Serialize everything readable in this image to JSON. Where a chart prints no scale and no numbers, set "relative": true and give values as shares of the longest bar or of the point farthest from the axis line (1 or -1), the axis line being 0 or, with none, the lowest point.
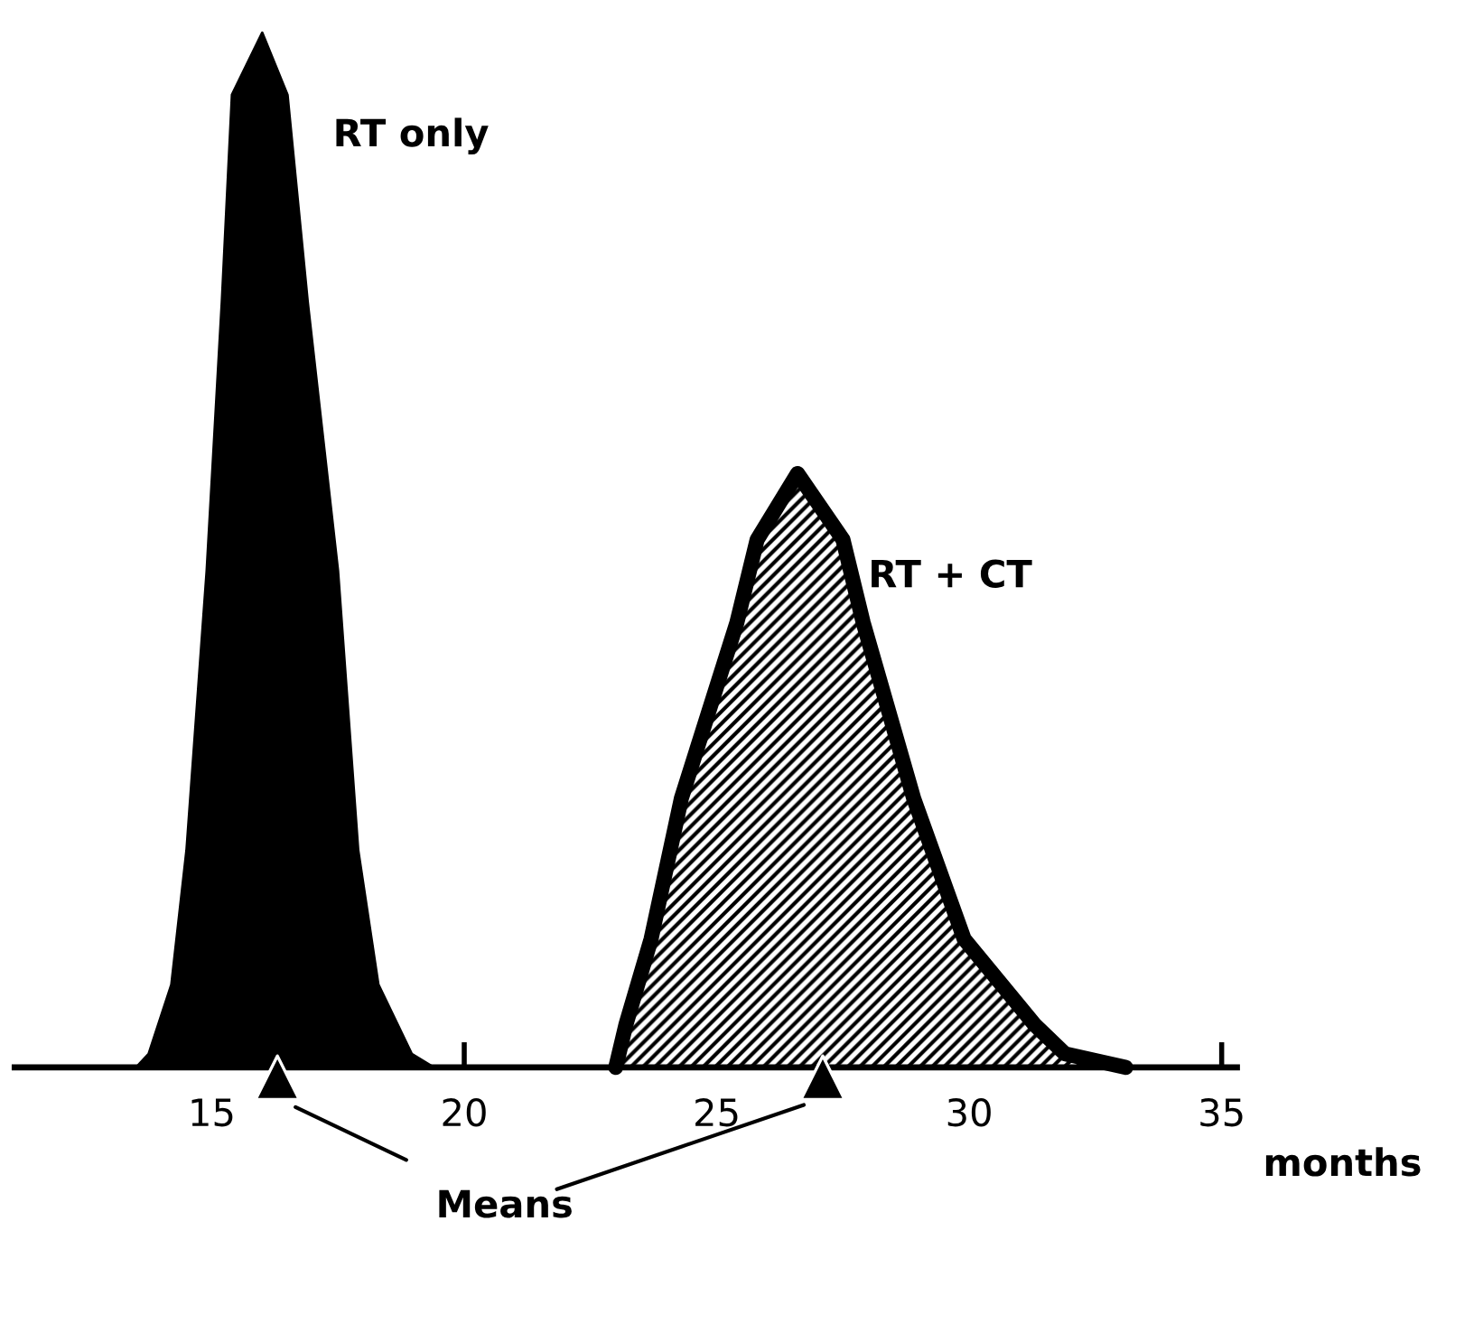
{
  "chart_data": {
    "type": "area",
    "relative": true,
    "xlabel": "months",
    "xlim": [
      11.1,
      35.3
    ],
    "xticks": [
      15,
      20,
      25,
      30,
      35
    ],
    "grid": false,
    "tick_labels": "x",
    "series": [
      {
        "name": "RT only",
        "color": "#000000",
        "x": [
          13.5,
          13.75,
          14.2,
          14.5,
          14.9,
          15.2,
          15.4,
          16.0,
          16.5,
          16.9,
          17.5,
          17.9,
          18.3,
          18.96,
          19.4
        ],
        "values": [
          0,
          0.013,
          0.08,
          0.21,
          0.48,
          0.74,
          0.94,
          1.0,
          0.94,
          0.74,
          0.48,
          0.21,
          0.08,
          0.013,
          0
        ]
      },
      {
        "name": "RT + CT",
        "color": "#000000",
        "x": [
          23.0,
          23.2,
          23.7,
          24.3,
          25.4,
          25.8,
          26.6,
          27.5,
          27.9,
          28.9,
          29.9,
          31.3,
          31.9,
          33.1
        ],
        "values": [
          0,
          0.041,
          0.124,
          0.26,
          0.43,
          0.51,
          0.574,
          0.51,
          0.43,
          0.26,
          0.124,
          0.041,
          0.013,
          0
        ]
      },
      {
        "type": "scatter",
        "marker": "triangle",
        "color": "#000000",
        "x": [
          16.3,
          27.1
        ],
        "values": [
          -0.01,
          -0.01
        ]
      }
    ],
    "annotations": [
      "Means"
    ]
  }
}
